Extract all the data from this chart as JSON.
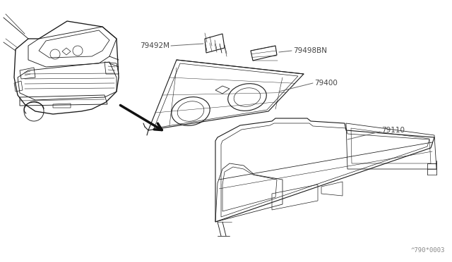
{
  "bg_color": "#ffffff",
  "line_color": "#1a1a1a",
  "label_color": "#444444",
  "leader_color": "#666666",
  "watermark": "^790*0003",
  "lw": 0.8
}
